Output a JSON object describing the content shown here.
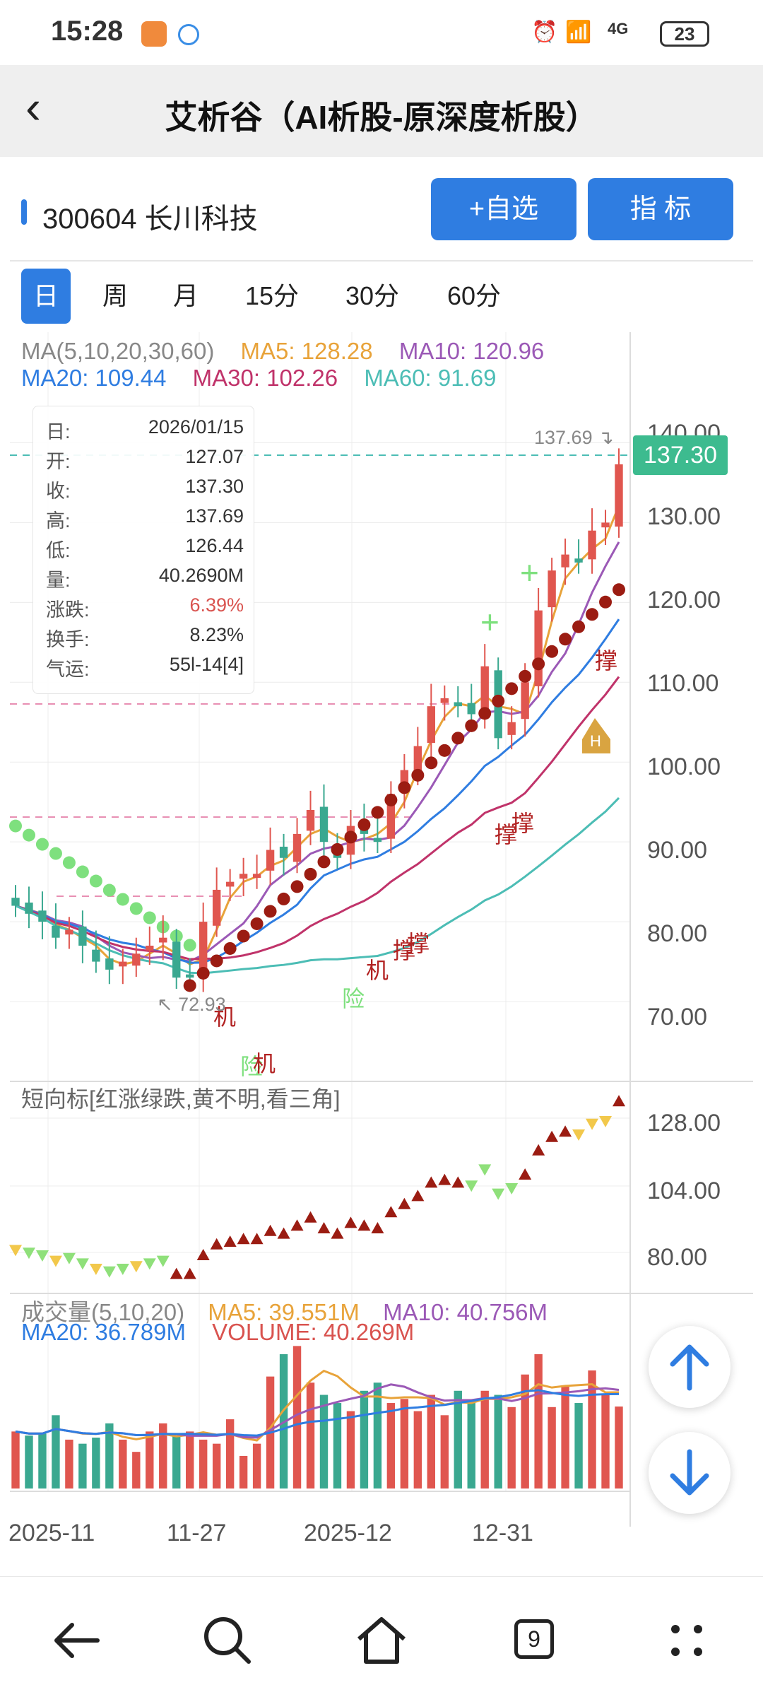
{
  "status_bar": {
    "time": "15:28",
    "network": "4G",
    "battery": "23"
  },
  "nav": {
    "title": "艾析谷（AI析股-原深度析股）"
  },
  "stock": {
    "code_name": "300604 长川科技",
    "add_watch_label": "+自选",
    "indicator_label": "指  标"
  },
  "tabs": [
    "日",
    "周",
    "月",
    "15分",
    "30分",
    "60分"
  ],
  "ma_legend": {
    "head": "MA(5,10,20,30,60)",
    "ma5": "MA5: 128.28",
    "ma10": "MA10: 120.96",
    "ma20": "MA20: 109.44",
    "ma30": "MA30: 102.26",
    "ma60": "MA60: 91.69",
    "colors": {
      "ma5": "#e8a33a",
      "ma10": "#9b59b6",
      "ma20": "#2f7de1",
      "ma30": "#c0336a",
      "ma60": "#4cbdb5"
    }
  },
  "info_panel": [
    {
      "label": "日:",
      "value": "2026/01/15"
    },
    {
      "label": "开:",
      "value": "127.07"
    },
    {
      "label": "收:",
      "value": "137.30"
    },
    {
      "label": "高:",
      "value": "137.69"
    },
    {
      "label": "低:",
      "value": "126.44"
    },
    {
      "label": "量:",
      "value": "40.2690M"
    },
    {
      "label": "涨跌:",
      "value": "6.39%"
    },
    {
      "label": "换手:",
      "value": "8.23%"
    },
    {
      "label": "气运:",
      "value": "55l-14[4]"
    }
  ],
  "price_axis": [
    "140.00",
    "130.00",
    "120.00",
    "110.00",
    "100.00",
    "90.00",
    "80.00",
    "70.00"
  ],
  "price_labels": {
    "last": "137.30",
    "high": "137.69",
    "low": "72.93"
  },
  "signals": [
    "机",
    "险",
    "机",
    "险",
    "机",
    "撑",
    "撑",
    "撑",
    "撑",
    "撑",
    "H"
  ],
  "short_indicator": {
    "title": "短向标[红涨绿跌,黄不明,看三角]",
    "axis": [
      "128.00",
      "104.00",
      "80.00"
    ]
  },
  "volume": {
    "head": "成交量(5,10,20)",
    "ma5": "MA5: 39.551M",
    "ma10": "MA10: 40.756M",
    "ma20": "MA20: 36.789M",
    "vol": "VOLUME: 40.269M"
  },
  "x_axis": [
    "2025-11",
    "11-27",
    "2025-12",
    "12-31"
  ],
  "bottom_nav": {
    "tab_count": "9"
  },
  "chart_data": {
    "type": "line",
    "dates": [
      "2025-11",
      "11-27",
      "2025-12",
      "12-31"
    ],
    "candles_close": [
      82,
      81,
      80,
      78,
      79,
      77,
      75,
      74,
      75,
      76,
      77,
      78,
      73,
      73,
      80,
      84,
      85,
      86,
      86,
      89,
      88,
      91,
      94,
      90,
      88,
      92,
      91,
      90,
      96,
      99,
      102,
      107,
      108,
      107,
      106,
      112,
      103,
      105,
      110,
      119,
      124,
      126,
      125,
      129,
      130,
      137.3
    ],
    "volume_values_M": [
      28,
      26,
      27,
      36,
      24,
      22,
      25,
      32,
      24,
      18,
      28,
      32,
      26,
      28,
      24,
      22,
      34,
      16,
      22,
      55,
      66,
      70,
      52,
      46,
      42,
      38,
      48,
      52,
      42,
      44,
      38,
      46,
      36,
      48,
      42,
      48,
      46,
      40,
      56,
      66,
      40,
      50,
      42,
      58,
      46,
      40.27
    ]
  }
}
